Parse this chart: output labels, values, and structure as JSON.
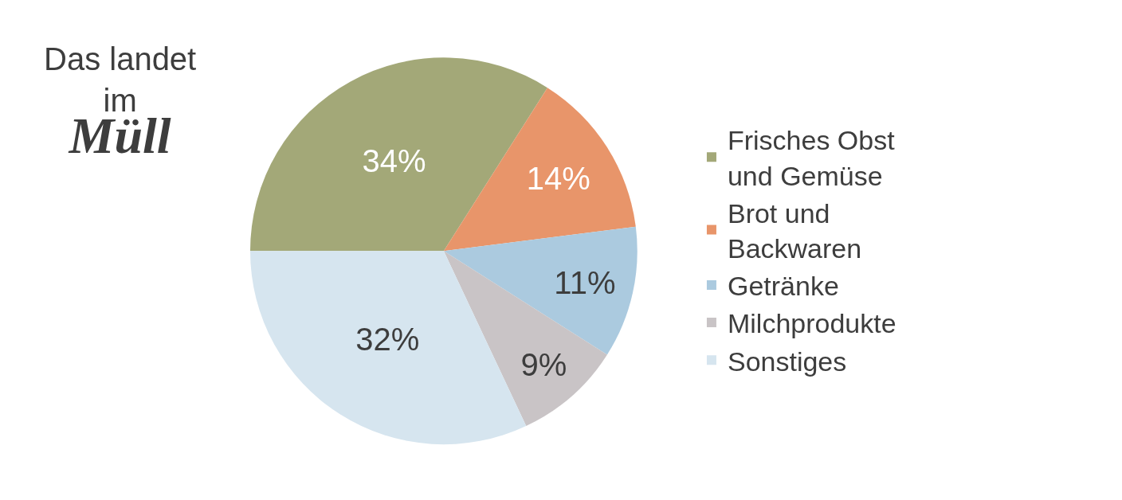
{
  "chart_data": {
    "type": "pie",
    "title": "Das landet\nim\nMüll",
    "categories": [
      "Frisches Obst\nund Gemüse",
      "Brot und\nBackwaren",
      "Getränke",
      "Milchprodukte",
      "Sonstiges"
    ],
    "values": [
      34,
      14,
      11,
      9,
      32
    ],
    "value_labels": [
      "34%",
      "14%",
      "11%",
      "9%",
      "32%"
    ],
    "colors": [
      "#a3a878",
      "#e8956a",
      "#abcadf",
      "#c9c4c6",
      "#d6e5ef"
    ],
    "legend": "right"
  }
}
